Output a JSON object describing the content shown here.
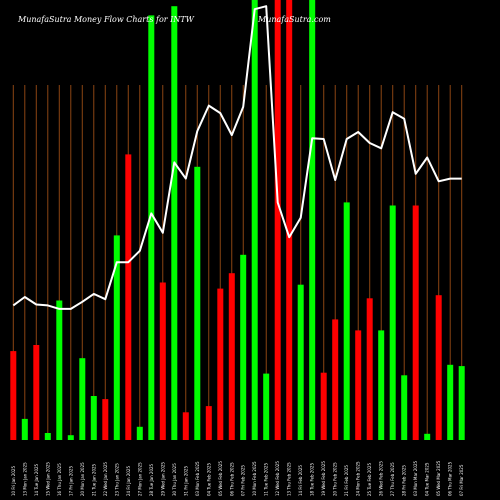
{
  "chart_data": {
    "type": "bar",
    "title": "MunafaSutra  Money Flow  Charts for INTW",
    "watermark": "MunafaSutra.com",
    "colors": {
      "background": "#000000",
      "up": "#00ff00",
      "down": "#ff0000",
      "line": "#ffffff",
      "grid": "#8b4513"
    },
    "ylim": [
      0,
      100
    ],
    "bars": [
      {
        "date": "10 Fri Jan 2025",
        "color": "red",
        "value": 20.2
      },
      {
        "date": "13 Mon Jan 2025",
        "color": "green",
        "value": 4.8
      },
      {
        "date": "14 Tue Jan 2025",
        "color": "red",
        "value": 21.6
      },
      {
        "date": "15 Wed Jan 2025",
        "color": "green",
        "value": 1.6
      },
      {
        "date": "16 Thu Jan 2025",
        "color": "green",
        "value": 31.7
      },
      {
        "date": "17 Fri Jan 2025",
        "color": "green",
        "value": 1.1
      },
      {
        "date": "20 Mon Jan 2025",
        "color": "green",
        "value": 18.6
      },
      {
        "date": "21 Tue Jan 2025",
        "color": "green",
        "value": 10.0
      },
      {
        "date": "22 Wed Jan 2025",
        "color": "red",
        "value": 9.3
      },
      {
        "date": "23 Thu Jan 2025",
        "color": "green",
        "value": 46.5
      },
      {
        "date": "24 Fri Jan 2025",
        "color": "red",
        "value": 64.9
      },
      {
        "date": "27 Mon Jan 2025",
        "color": "green",
        "value": 3.0
      },
      {
        "date": "28 Tue Jan 2025",
        "color": "green",
        "value": 96.5
      },
      {
        "date": "29 Wed Jan 2025",
        "color": "red",
        "value": 35.8
      },
      {
        "date": "30 Thu Jan 2025",
        "color": "green",
        "value": 98.6
      },
      {
        "date": "31 Fri Jan 2025",
        "color": "red",
        "value": 6.3
      },
      {
        "date": "03 Mon Feb 2025",
        "color": "green",
        "value": 62.1
      },
      {
        "date": "04 Tue Feb 2025",
        "color": "red",
        "value": 7.7
      },
      {
        "date": "05 Wed Feb 2025",
        "color": "red",
        "value": 34.4
      },
      {
        "date": "06 Thu Feb 2025",
        "color": "red",
        "value": 37.9
      },
      {
        "date": "07 Fri Feb 2025",
        "color": "green",
        "value": 42.1
      },
      {
        "date": "10 Mon Feb 2025",
        "color": "green",
        "value": 100
      },
      {
        "date": "11 Tue Feb 2025",
        "color": "green",
        "value": 15.1
      },
      {
        "date": "12 Wed Feb 2025",
        "color": "red",
        "value": 100
      },
      {
        "date": "13 Thu Feb 2025",
        "color": "red",
        "value": 100
      },
      {
        "date": "14 Fri Feb 2025",
        "color": "green",
        "value": 35.3
      },
      {
        "date": "18 Tue Feb 2025",
        "color": "green",
        "value": 100
      },
      {
        "date": "19 Wed Feb 2025",
        "color": "red",
        "value": 15.3
      },
      {
        "date": "20 Thu Feb 2025",
        "color": "red",
        "value": 27.4
      },
      {
        "date": "21 Fri Feb 2025",
        "color": "green",
        "value": 54.0
      },
      {
        "date": "24 Mon Feb 2025",
        "color": "red",
        "value": 24.9
      },
      {
        "date": "25 Tue Feb 2025",
        "color": "red",
        "value": 32.2
      },
      {
        "date": "26 Wed Feb 2025",
        "color": "green",
        "value": 24.9
      },
      {
        "date": "27 Thu Feb 2025",
        "color": "green",
        "value": 53.3
      },
      {
        "date": "28 Fri Feb 2025",
        "color": "green",
        "value": 14.7
      },
      {
        "date": "03 Mon Mar 2025",
        "color": "red",
        "value": 53.3
      },
      {
        "date": "04 Tue Mar 2025",
        "color": "green",
        "value": 1.4
      },
      {
        "date": "05 Wed Mar 2025",
        "color": "red",
        "value": 32.9
      },
      {
        "date": "06 Thu Mar 2025",
        "color": "green",
        "value": 17.1
      },
      {
        "date": "07 Fri Mar 2025",
        "color": "green",
        "value": 16.8
      }
    ],
    "line": [
      30.6,
      32.5,
      30.8,
      30.6,
      29.8,
      29.8,
      31.4,
      33.2,
      32.0,
      40.4,
      40.4,
      43.0,
      51.5,
      47.1,
      63.1,
      59.4,
      70.2,
      76.0,
      74.3,
      69.3,
      75.7,
      97.9,
      98.6,
      54.0,
      46.1,
      50.5,
      68.6,
      68.4,
      59.1,
      68.4,
      70.0,
      67.5,
      66.3,
      74.5,
      73.0,
      60.5,
      64.2,
      58.8,
      59.4,
      59.4
    ]
  }
}
